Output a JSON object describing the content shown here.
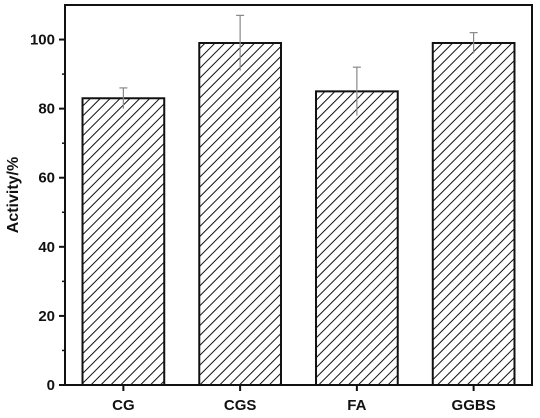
{
  "chart_data": {
    "type": "bar",
    "title": "",
    "xlabel": "",
    "ylabel": "Activity/%",
    "categories": [
      "CG",
      "CGS",
      "FA",
      "GGBS"
    ],
    "series": [
      {
        "values": [
          83,
          99,
          85,
          99
        ],
        "errors": [
          3,
          8,
          7,
          3
        ]
      }
    ],
    "ylim": [
      0,
      110
    ],
    "yticks": [
      0,
      20,
      40,
      60,
      80,
      100
    ],
    "grid": false,
    "legend": "none",
    "bar_fill": "diagonal-hatch",
    "colors": {
      "bar_stroke": "#111111",
      "hatch": "#111111",
      "error_bar": "#888888",
      "axis": "#111111"
    }
  }
}
